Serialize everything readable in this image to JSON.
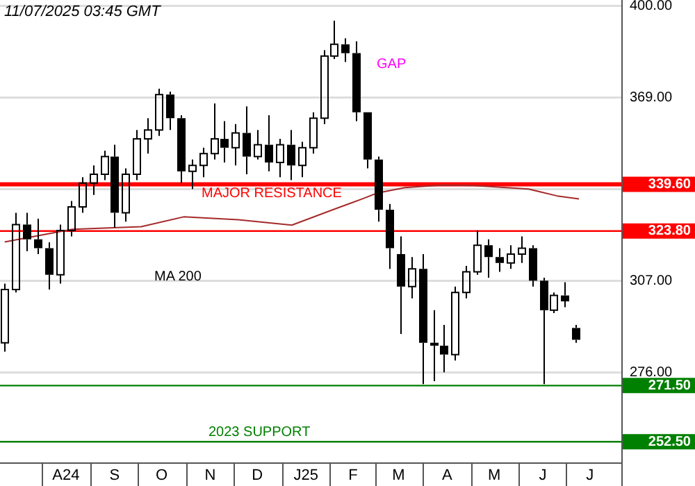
{
  "chart_data": {
    "type": "candlestick",
    "title": "11/07/2025 03:45 GMT",
    "xlim": [
      "2024-07-05",
      "2025-08-05"
    ],
    "xticks": [
      {
        "value": "2024-08-16",
        "label": "A24"
      },
      {
        "value": "2024-09-16",
        "label": "S"
      },
      {
        "value": "2024-10-16",
        "label": "O"
      },
      {
        "value": "2024-11-16",
        "label": "N"
      },
      {
        "value": "2024-12-16",
        "label": "D"
      },
      {
        "value": "2025-01-16",
        "label": "J25"
      },
      {
        "value": "2025-02-15",
        "label": "F"
      },
      {
        "value": "2025-03-16",
        "label": "M"
      },
      {
        "value": "2025-04-16",
        "label": "A"
      },
      {
        "value": "2025-05-16",
        "label": "M"
      },
      {
        "value": "2025-06-16",
        "label": "J"
      },
      {
        "value": "2025-07-16",
        "label": "J"
      }
    ],
    "ylim": [
      245.5,
      402
    ],
    "yticks": [
      {
        "value": 276,
        "label": "276.00"
      },
      {
        "value": 307,
        "label": "307.00"
      },
      {
        "value": 338,
        "label": null
      },
      {
        "value": 369,
        "label": "369.00"
      },
      {
        "value": 400,
        "label": "400.00"
      }
    ],
    "grid": "y",
    "series": [
      {
        "color": "#000000",
        "x": [
          "2024-07-08",
          "2024-07-15",
          "2024-07-22",
          "2024-07-29",
          "2024-08-05",
          "2024-08-12",
          "2024-08-19",
          "2024-08-26",
          "2024-09-02",
          "2024-09-09",
          "2024-09-16",
          "2024-09-23",
          "2024-09-30",
          "2024-10-07",
          "2024-10-14",
          "2024-10-21",
          "2024-10-28",
          "2024-11-04",
          "2024-11-11",
          "2024-11-18",
          "2024-11-25",
          "2024-12-02",
          "2024-12-09",
          "2024-12-16",
          "2024-12-23",
          "2024-12-30",
          "2025-01-06",
          "2025-01-13",
          "2025-01-20",
          "2025-01-27",
          "2025-02-03",
          "2025-02-10",
          "2025-02-17",
          "2025-02-24",
          "2025-03-03",
          "2025-03-10",
          "2025-03-17",
          "2025-03-24",
          "2025-03-31",
          "2025-04-07",
          "2025-04-14",
          "2025-04-21",
          "2025-04-28",
          "2025-05-05",
          "2025-05-12",
          "2025-05-19",
          "2025-05-26",
          "2025-06-02",
          "2025-06-09",
          "2025-06-16",
          "2025-06-23",
          "2025-06-30",
          "2025-07-07"
        ],
        "ohlc": [
          [
            286,
            306,
            283,
            304
          ],
          [
            304,
            330,
            303,
            326
          ],
          [
            326,
            330,
            317,
            321
          ],
          [
            321,
            328,
            316,
            318
          ],
          [
            318,
            320,
            304,
            309
          ],
          [
            309,
            326,
            306,
            324
          ],
          [
            324,
            334,
            322,
            332
          ],
          [
            332,
            342,
            330,
            340
          ],
          [
            340,
            346,
            336,
            343
          ],
          [
            343,
            351,
            341,
            349
          ],
          [
            349,
            353,
            325,
            330
          ],
          [
            330,
            345,
            327,
            343
          ],
          [
            343,
            358,
            341,
            355
          ],
          [
            355,
            362,
            350,
            358
          ],
          [
            358,
            372,
            356,
            370
          ],
          [
            370,
            371,
            358,
            362
          ],
          [
            362,
            363,
            340,
            344
          ],
          [
            344,
            348,
            338,
            346
          ],
          [
            346,
            352,
            342,
            350
          ],
          [
            350,
            367,
            348,
            355
          ],
          [
            355,
            361,
            347,
            352
          ],
          [
            352,
            360,
            346,
            357
          ],
          [
            357,
            366,
            343,
            349
          ],
          [
            349,
            358,
            348,
            353
          ],
          [
            353,
            363,
            344,
            347
          ],
          [
            347,
            355,
            342,
            353
          ],
          [
            353,
            358,
            341,
            346
          ],
          [
            346,
            354,
            342,
            352
          ],
          [
            352,
            364,
            350,
            362
          ],
          [
            362,
            385,
            360,
            383
          ],
          [
            383,
            395,
            382,
            387
          ],
          [
            387,
            389,
            381,
            384
          ],
          [
            384,
            388,
            361,
            364
          ],
          [
            364,
            364,
            345,
            348
          ],
          [
            348,
            349,
            327,
            331
          ],
          [
            331,
            333,
            311,
            318
          ],
          [
            316,
            322,
            289,
            305
          ],
          [
            305,
            315,
            301,
            311
          ],
          [
            311,
            316,
            272,
            286
          ],
          [
            286,
            297,
            273,
            285
          ],
          [
            285,
            292,
            276,
            282
          ],
          [
            282,
            305,
            280,
            303
          ],
          [
            303,
            312,
            301,
            310
          ],
          [
            310,
            324,
            309,
            319
          ],
          [
            319,
            321,
            308,
            315
          ],
          [
            315,
            318,
            310,
            313
          ],
          [
            313,
            319,
            311,
            316
          ],
          [
            316,
            322,
            313,
            318
          ],
          [
            318,
            319,
            305,
            307
          ],
          [
            307,
            308,
            272,
            297
          ],
          [
            297,
            303,
            296,
            302
          ],
          [
            302,
            306.5,
            298,
            300
          ],
          [
            291,
            292,
            286,
            287
          ]
        ]
      },
      {
        "type": "line",
        "color": "#a52a2a",
        "x": [
          "2024-07-08",
          "2024-08-20",
          "2024-10-03",
          "2024-10-30",
          "2024-12-04",
          "2025-01-07",
          "2025-02-04",
          "2025-02-21",
          "2025-03-02",
          "2025-03-20",
          "2025-04-13",
          "2025-05-03",
          "2025-06-07",
          "2025-06-25",
          "2025-07-09"
        ],
        "values": [
          320.1,
          324.4,
          325.3,
          328.6,
          327.6,
          325.8,
          331.4,
          334.7,
          336.6,
          338.5,
          339.4,
          339.2,
          338,
          335.7,
          334.7
        ]
      }
    ],
    "ref_lines": [
      {
        "axis": "y",
        "value": 339.6,
        "label": "339.60",
        "color": "#ff0000"
      },
      {
        "axis": "y",
        "value": 323.8,
        "label": "323.80",
        "color": "#ff0000"
      },
      {
        "axis": "y",
        "value": 271.5,
        "label": "271.50",
        "color": "#008000"
      },
      {
        "axis": "y",
        "value": 252.5,
        "label": "252.50",
        "color": "#008000"
      }
    ],
    "annotations": [
      "MAJOR RESISTANCE",
      "2023 SUPPORT",
      "GAP",
      "MA 200"
    ]
  }
}
